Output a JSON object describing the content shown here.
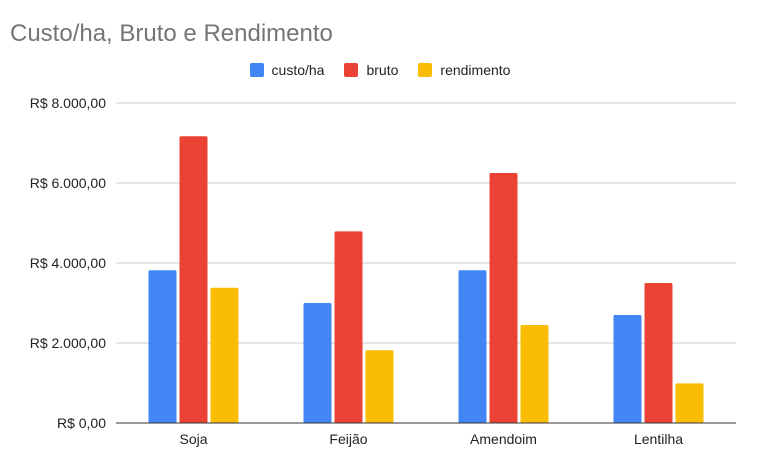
{
  "chart_data": {
    "type": "bar",
    "title": "Custo/ha, Bruto e Rendimento",
    "xlabel": "",
    "ylabel": "",
    "categories": [
      "Soja",
      "Feijão",
      "Amendoim",
      "Lentilha"
    ],
    "series": [
      {
        "name": "custo/ha",
        "color": "#4285f4",
        "values": [
          3820,
          3000,
          3820,
          2700
        ]
      },
      {
        "name": "bruto",
        "color": "#ea4335",
        "values": [
          7170,
          4790,
          6250,
          3500
        ]
      },
      {
        "name": "rendimento",
        "color": "#fbbc04",
        "values": [
          3380,
          1820,
          2450,
          990
        ]
      }
    ],
    "ylim": [
      0,
      8000
    ],
    "yticks": [
      {
        "value": 0,
        "label": "R$ 0,00"
      },
      {
        "value": 2000,
        "label": "R$ 2.000,00"
      },
      {
        "value": 4000,
        "label": "R$ 4.000,00"
      },
      {
        "value": 6000,
        "label": "R$ 6.000,00"
      },
      {
        "value": 8000,
        "label": "R$ 8.000,00"
      }
    ],
    "grid": true,
    "legend_position": "top-center"
  }
}
